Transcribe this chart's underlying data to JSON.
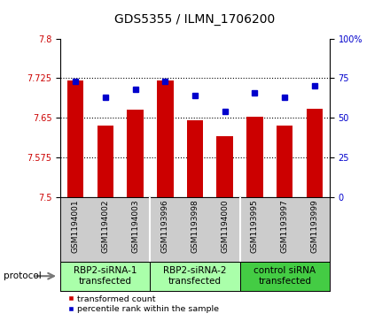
{
  "title": "GDS5355 / ILMN_1706200",
  "samples": [
    "GSM1194001",
    "GSM1194002",
    "GSM1194003",
    "GSM1193996",
    "GSM1193998",
    "GSM1194000",
    "GSM1193995",
    "GSM1193997",
    "GSM1193999"
  ],
  "transformed_count": [
    7.72,
    7.635,
    7.665,
    7.72,
    7.645,
    7.615,
    7.653,
    7.635,
    7.668
  ],
  "percentile_rank": [
    73,
    63,
    68,
    73,
    64,
    54,
    66,
    63,
    70
  ],
  "ylim_left": [
    7.5,
    7.8
  ],
  "ylim_right": [
    0,
    100
  ],
  "yticks_left": [
    7.5,
    7.575,
    7.65,
    7.725,
    7.8
  ],
  "yticks_right": [
    0,
    25,
    50,
    75,
    100
  ],
  "ytick_labels_left": [
    "7.5",
    "7.575",
    "7.65",
    "7.725",
    "7.8"
  ],
  "ytick_labels_right": [
    "0",
    "25",
    "50",
    "75",
    "100%"
  ],
  "bar_color": "#cc0000",
  "marker_color": "#0000cc",
  "bar_bottom": 7.5,
  "groups": [
    {
      "label": "RBP2-siRNA-1\ntransfected",
      "indices": [
        0,
        1,
        2
      ],
      "color": "#aaffaa"
    },
    {
      "label": "RBP2-siRNA-2\ntransfected",
      "indices": [
        3,
        4,
        5
      ],
      "color": "#aaffaa"
    },
    {
      "label": "control siRNA\ntransfected",
      "indices": [
        6,
        7,
        8
      ],
      "color": "#44cc44"
    }
  ],
  "protocol_label": "protocol",
  "legend_bar_label": "transformed count",
  "legend_marker_label": "percentile rank within the sample",
  "plot_bg": "#ffffff",
  "tick_area_bg": "#cccccc",
  "title_fontsize": 10,
  "tick_fontsize": 7,
  "label_fontsize": 7.5,
  "group_label_fontsize": 7.5
}
